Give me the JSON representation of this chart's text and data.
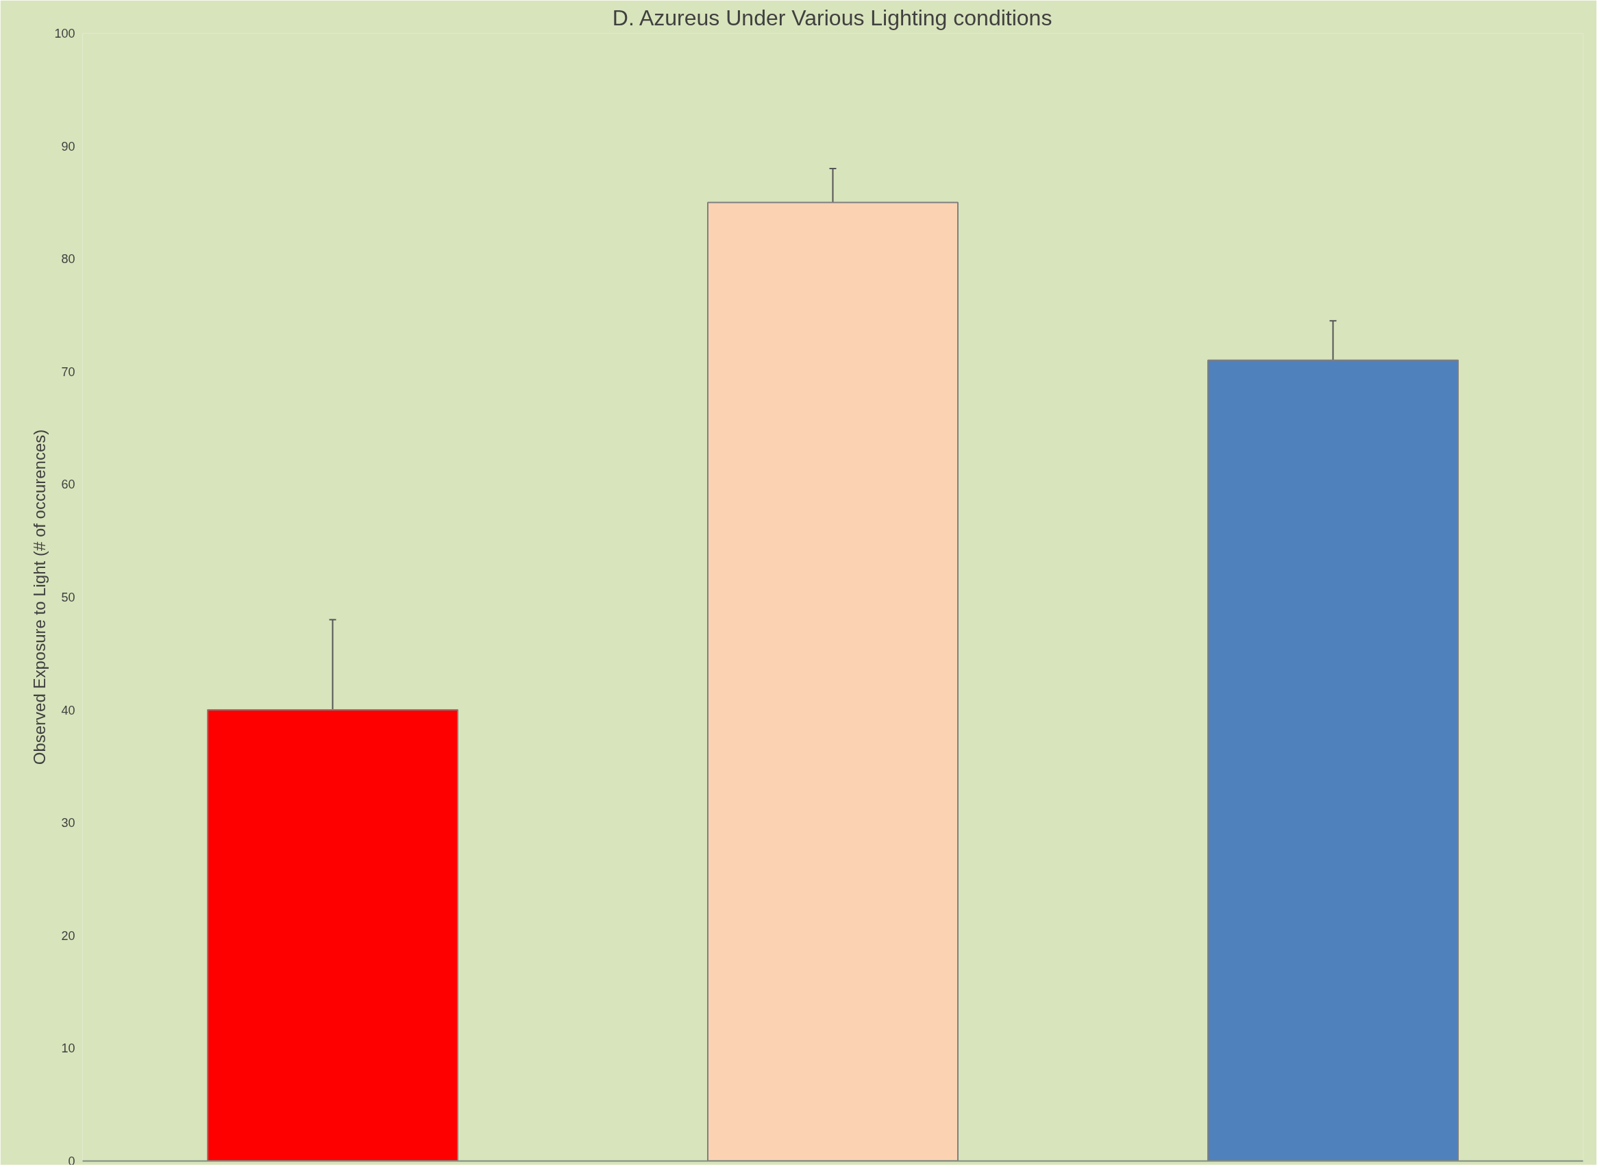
{
  "chart_data": {
    "type": "bar",
    "title": "D. Azureus Under Various Lighting conditions",
    "ylabel": "Observed Exposure to Light (# of occurences)",
    "categories": [
      null,
      null,
      null
    ],
    "values": [
      40,
      85,
      71
    ],
    "colors": [
      "#ff0000",
      "#fbd3b3",
      "#4f81bd"
    ],
    "errors": [
      8,
      3,
      3.5
    ],
    "ylim": [
      0,
      100
    ],
    "yticks": [
      0,
      10,
      20,
      30,
      40,
      50,
      60,
      70,
      80,
      90,
      100
    ],
    "grid": false
  }
}
